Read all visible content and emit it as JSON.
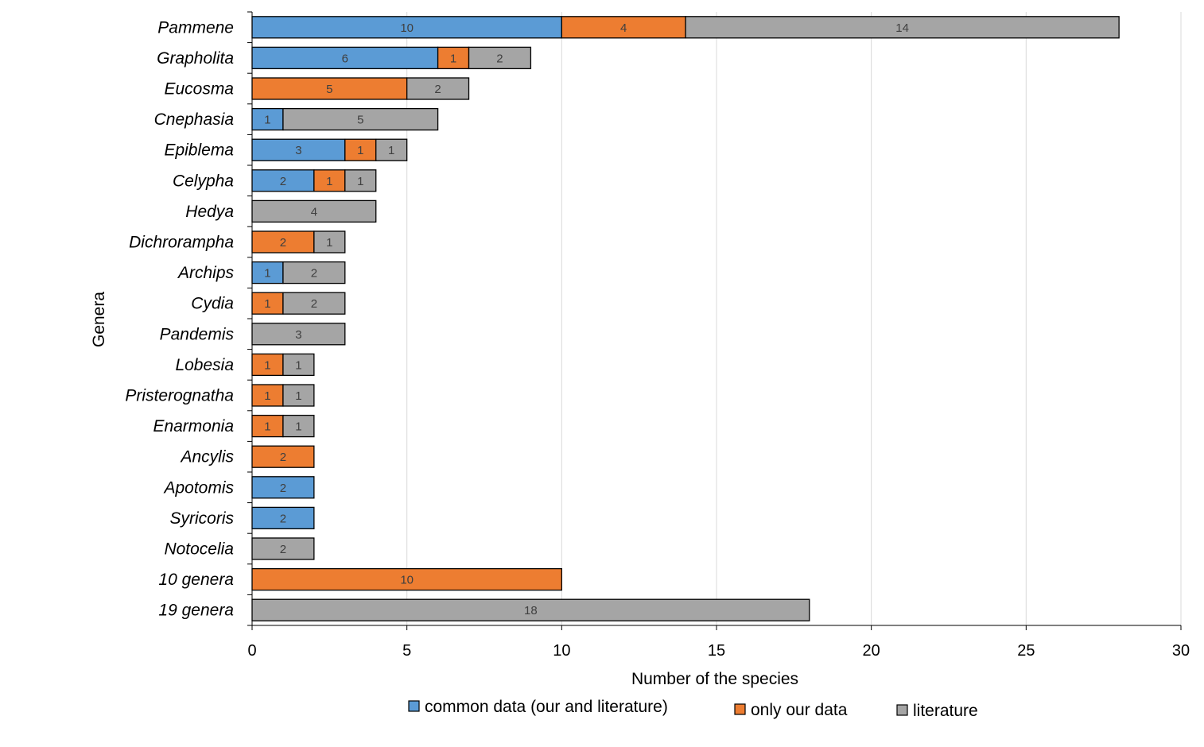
{
  "chart_data": {
    "type": "bar",
    "orientation": "horizontal",
    "stacked": true,
    "title": "",
    "xlabel": "Number of the species",
    "ylabel": "Genera",
    "xlim": [
      0,
      30
    ],
    "xticks": [
      0,
      5,
      10,
      15,
      20,
      25,
      30
    ],
    "grid": "vertical",
    "legend_position": "bottom",
    "categories": [
      "Pammene",
      "Grapholita",
      "Eucosma",
      "Cnephasia",
      "Epiblema",
      "Celypha",
      "Hedya",
      "Dichrorampha",
      "Archips",
      "Cydia",
      "Pandemis",
      "Lobesia",
      "Pristerognatha",
      "Enarmonia",
      "Ancylis",
      "Apotomis",
      "Syricoris",
      "Notocelia",
      "10 genera",
      "19 genera"
    ],
    "series": [
      {
        "name": "common data (our and literature)",
        "color": "#5b9bd5",
        "values": [
          10,
          6,
          0,
          1,
          3,
          2,
          0,
          0,
          1,
          0,
          0,
          0,
          0,
          0,
          0,
          2,
          2,
          0,
          0,
          0
        ]
      },
      {
        "name": "only our data",
        "color": "#ed7d31",
        "values": [
          4,
          1,
          5,
          0,
          1,
          1,
          0,
          2,
          0,
          1,
          0,
          1,
          1,
          1,
          2,
          0,
          0,
          0,
          10,
          0
        ]
      },
      {
        "name": "literature",
        "color": "#a5a5a5",
        "values": [
          14,
          2,
          2,
          5,
          1,
          1,
          4,
          1,
          2,
          2,
          3,
          1,
          1,
          1,
          0,
          0,
          0,
          2,
          0,
          18
        ]
      }
    ]
  }
}
